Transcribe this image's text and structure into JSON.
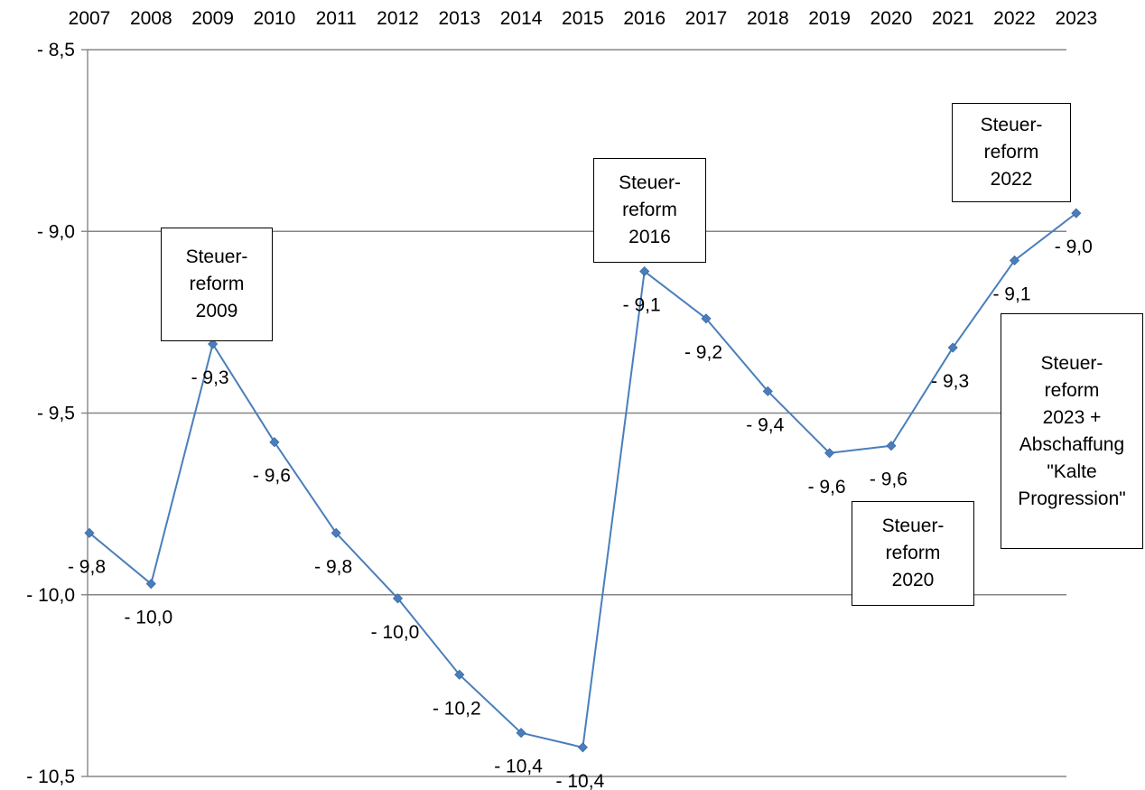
{
  "chart_data": {
    "type": "line",
    "title": "",
    "xlabel": "",
    "ylabel": "",
    "x_axis_position": "top",
    "categories": [
      "2007",
      "2008",
      "2009",
      "2010",
      "2011",
      "2012",
      "2013",
      "2014",
      "2015",
      "2016",
      "2017",
      "2018",
      "2019",
      "2020",
      "2021",
      "2022",
      "2023"
    ],
    "series": [
      {
        "values": [
          -9.83,
          -9.97,
          -9.31,
          -9.58,
          -9.83,
          -10.01,
          -10.22,
          -10.38,
          -10.42,
          -9.11,
          -9.24,
          -9.44,
          -9.61,
          -9.59,
          -9.32,
          -9.08,
          -8.95
        ],
        "labels": [
          "- 9,8",
          "- 10,0",
          "- 9,3",
          "- 9,6",
          "- 9,8",
          "- 10,0",
          "- 10,2",
          "- 10,4",
          "- 10,4",
          "- 9,1",
          "- 9,2",
          "- 9,4",
          "- 9,6",
          "- 9,6",
          "- 9,3",
          "- 9,1",
          "- 9,0"
        ]
      }
    ],
    "ylim": [
      -10.5,
      -8.5
    ],
    "yticks": [
      -8.5,
      -9.0,
      -9.5,
      -10.0,
      -10.5
    ],
    "ytick_labels": [
      "- 8,5",
      "- 9,0",
      "- 9,5",
      "- 10,0",
      "- 10,5"
    ],
    "grid": true,
    "colors": {
      "line": "#4a7ebb",
      "marker": "#4a7ebb",
      "grid": "#868686"
    },
    "annotations": [
      {
        "text": "Steuer-\nreform\n2009"
      },
      {
        "text": "Steuer-\nreform\n2016"
      },
      {
        "text": "Steuer-\nreform\n2022"
      },
      {
        "text": "Steuer-\nreform\n2023 +\nAbschaffung\n\"Kalte\nProgression\""
      },
      {
        "text": "Steuer-\nreform\n2020"
      }
    ]
  }
}
